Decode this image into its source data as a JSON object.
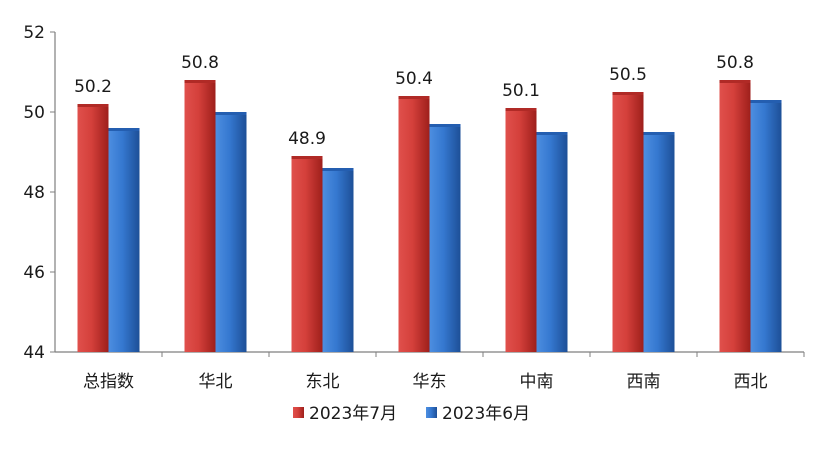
{
  "chart_data": {
    "type": "bar",
    "title": "",
    "xlabel": "",
    "ylabel": "",
    "ylim": [
      44,
      52
    ],
    "yticks": [
      44,
      46,
      48,
      50,
      52
    ],
    "grid": false,
    "legend_position": "bottom-center",
    "categories": [
      "总指数",
      "华北",
      "东北",
      "华东",
      "中南",
      "西南",
      "西北"
    ],
    "series": [
      {
        "name": "2023年7月",
        "color": "#c9302c",
        "values": [
          50.2,
          50.8,
          48.9,
          50.4,
          50.1,
          50.5,
          50.8
        ],
        "labels": [
          "50.2",
          "50.8",
          "48.9",
          "50.4",
          "50.1",
          "50.5",
          "50.8"
        ]
      },
      {
        "name": "2023年6月",
        "color": "#2f6fc8",
        "values": [
          49.6,
          50.0,
          48.6,
          49.7,
          49.5,
          49.5,
          50.3
        ]
      }
    ]
  }
}
